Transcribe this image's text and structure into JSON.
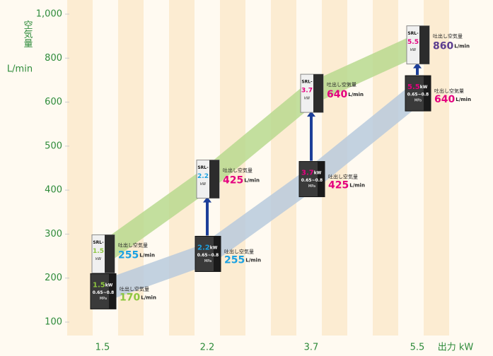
{
  "chart_data": {
    "type": "band",
    "y_label": "空気量",
    "y_unit": "L/min",
    "x_label": "出力 kW",
    "categories": [
      "1.5",
      "2.2",
      "3.7",
      "5.5"
    ],
    "ylim": [
      100,
      1000
    ],
    "yticks": [
      100,
      200,
      300,
      400,
      500,
      600,
      800,
      {
        "value": 1000,
        "label": "1,000"
      }
    ],
    "capacity_label": "吐出し空気量",
    "value_unit": "L/min",
    "power_unit": "kW",
    "pressure_range": "0.65~0.8",
    "pressure_unit": "MPa",
    "model_prefix": "SRL-",
    "series": [
      {
        "color": "#b9cadd",
        "values": [
          170,
          255,
          425,
          640
        ],
        "label_colors": [
          "#8dc63f",
          "#1ba1e2",
          "#e4007f",
          "#e4007f"
        ]
      },
      {
        "color": "#b8d98f",
        "values": [
          255,
          425,
          640,
          860
        ],
        "label_colors": [
          "#1ba1e2",
          "#e4007f",
          "#e4007f",
          "#5b3d8f"
        ]
      }
    ]
  }
}
